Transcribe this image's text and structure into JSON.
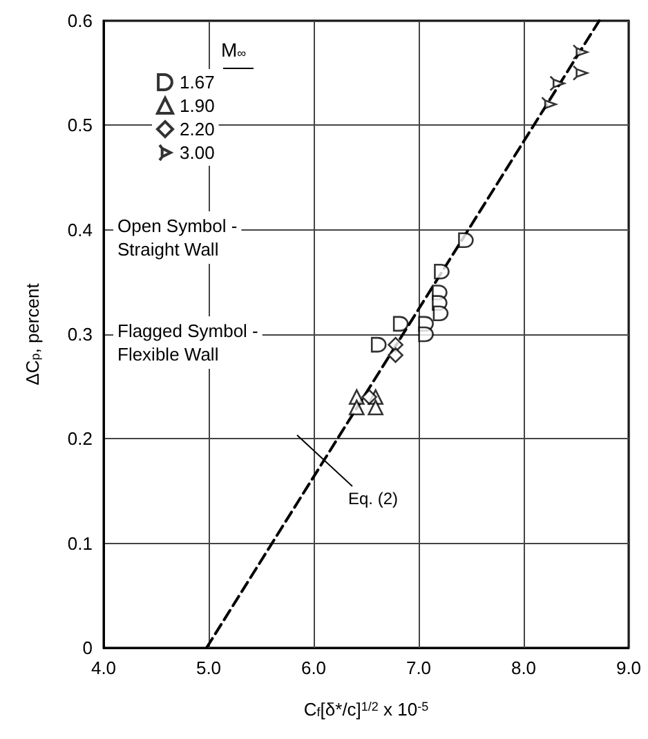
{
  "chart_data": {
    "type": "scatter",
    "xlabel": "C$_{f}$[δ*/c]$^{1/2}$ x 10$^{-5}$",
    "ylabel": "ΔC$_{p}$, percent",
    "legend_title": "M$_{∞}$",
    "legend": "top left",
    "grid": true,
    "xlim": [
      4,
      9
    ],
    "xticks": [
      {
        "value": 4,
        "label": "4.0"
      },
      {
        "value": 5,
        "label": "5.0"
      },
      {
        "value": 6,
        "label": "6.0"
      },
      {
        "value": 7,
        "label": "7.0"
      },
      {
        "value": 8,
        "label": "8.0"
      },
      {
        "value": 9,
        "label": "9.0"
      }
    ],
    "ylim": [
      0,
      0.6
    ],
    "yticks": [
      0,
      0.1,
      0.2,
      0.3,
      0.4,
      0.5,
      0.6
    ],
    "series": [
      {
        "name": "1.67",
        "color": "#000000",
        "marker": "circle",
        "x": [
          7.45,
          7.22,
          7.2,
          7.2,
          7.21,
          7.07,
          7.07,
          6.83,
          6.62
        ],
        "values": [
          0.39,
          0.36,
          0.34,
          0.33,
          0.32,
          0.31,
          0.3,
          0.31,
          0.29
        ]
      },
      {
        "name": "1.90",
        "color": "#000000",
        "marker": "triangle",
        "x": [
          6.41,
          6.41,
          6.59,
          6.59
        ],
        "values": [
          0.24,
          0.23,
          0.24,
          0.23
        ]
      },
      {
        "name": "2.20",
        "color": "#000000",
        "marker": "diamond",
        "x": [
          6.78,
          6.78,
          6.53
        ],
        "values": [
          0.29,
          0.28,
          0.24
        ]
      },
      {
        "name": "3.00",
        "color": "#000000",
        "marker": "cross",
        "x": [
          8.54,
          8.54,
          8.32,
          8.24
        ],
        "values": [
          0.57,
          0.55,
          0.54,
          0.52
        ]
      },
      {
        "type": "line",
        "color": "#000000",
        "marker": "none",
        "line_style": "dashed",
        "x": [
          4.98,
          8.72
        ],
        "values": [
          0,
          0.6
        ]
      }
    ],
    "annotations": [
      "Open Symbol -\nStraight Wall",
      "Flagged Symbol -\nFlexible Wall",
      "Eq. (2)"
    ]
  }
}
